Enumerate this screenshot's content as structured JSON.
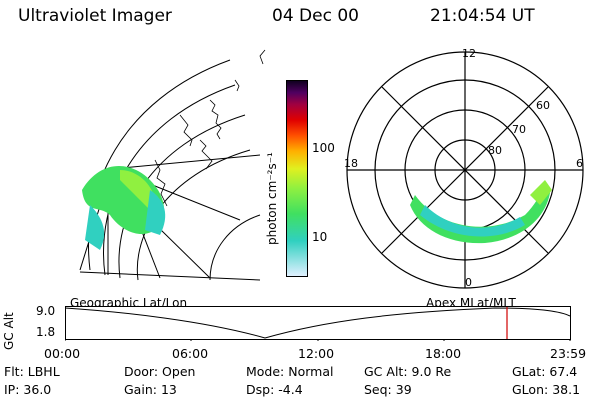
{
  "header": {
    "instrument": "Ultraviolet Imager",
    "date": "04 Dec 00",
    "time": "21:04:54 UT"
  },
  "colorbar": {
    "unit_label": "photon cm⁻²s⁻¹",
    "ticks": [
      "100",
      "10"
    ],
    "scale": "log",
    "colors": [
      "#e0f0ff",
      "#30d0c0",
      "#40e060",
      "#90f040",
      "#e0f020",
      "#ffb000",
      "#ff5000",
      "#e00000",
      "#a00040",
      "#500060",
      "#100020"
    ]
  },
  "geo_map": {
    "label": "Geographic Lat/Lon"
  },
  "polar_plot": {
    "label": "Apex  MLat/MLT",
    "mlt_labels": {
      "top": "12",
      "left": "18",
      "right": "6",
      "bottom": "0"
    },
    "lat_labels": [
      "60",
      "70",
      "80"
    ]
  },
  "gc_alt_chart": {
    "ylabel": "GC Alt",
    "ytick_top": "9.0",
    "ytick_bottom": "1.8",
    "xticks": [
      "00:00",
      "06:00",
      "12:00",
      "18:00",
      "23:59"
    ],
    "marker_color": "#d00000"
  },
  "footer": {
    "row1": [
      {
        "key": "Flt:",
        "val": "LBHL"
      },
      {
        "key": "Door:",
        "val": "Open"
      },
      {
        "key": "Mode:",
        "val": "Normal"
      },
      {
        "key": "GC Alt:",
        "val": "9.0 Re"
      },
      {
        "key": "GLat:",
        "val": "67.4"
      }
    ],
    "row2": [
      {
        "key": "IP:",
        "val": "36.0"
      },
      {
        "key": "Gain:",
        "val": "13"
      },
      {
        "key": "Dsp:",
        "val": "-4.4"
      },
      {
        "key": "Seq:",
        "val": "39"
      },
      {
        "key": "GLon:",
        "val": "38.1"
      }
    ]
  }
}
